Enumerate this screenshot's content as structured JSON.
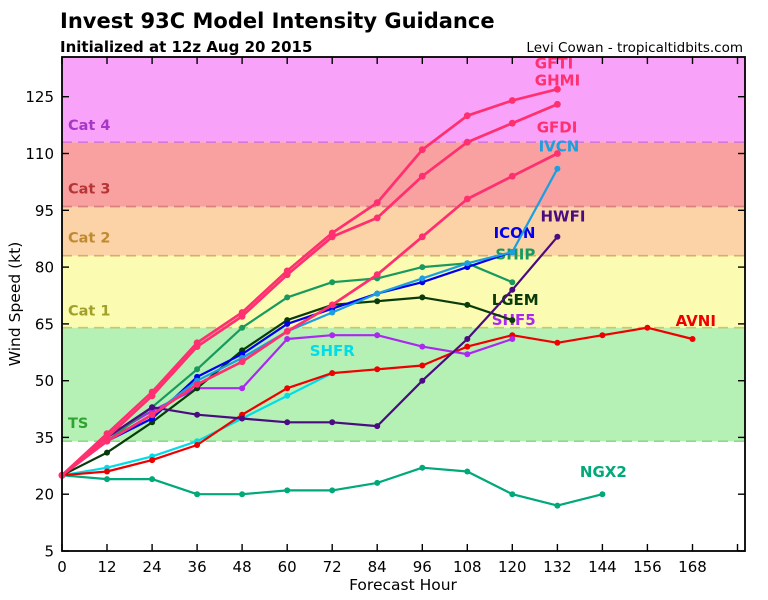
{
  "header": {
    "title": "Invest 93C Model Intensity Guidance",
    "subtitle": "Initialized at 12z Aug 20 2015",
    "credit": "Levi Cowan - tropicaltidbits.com"
  },
  "chart_data": {
    "type": "line",
    "title": "Invest 93C Model Intensity Guidance",
    "xlabel": "Forecast Hour",
    "ylabel": "Wind Speed (kt)",
    "xlim": [
      0,
      182
    ],
    "ylim": [
      5,
      135.5
    ],
    "xticks": [
      0,
      12,
      24,
      36,
      48,
      60,
      72,
      84,
      96,
      108,
      120,
      132,
      144,
      156,
      168,
      180
    ],
    "xtick_labels": [
      "0",
      "12",
      "24",
      "36",
      "48",
      "60",
      "72",
      "84",
      "96",
      "108",
      "120",
      "132",
      "144",
      "156",
      "168",
      ""
    ],
    "yticks": [
      5,
      20,
      35,
      50,
      65,
      80,
      95,
      110,
      125
    ],
    "grid": false,
    "legend_style": "inline-labels-at-line-ends",
    "bands": [
      {
        "name": "ts",
        "label": "TS",
        "from": 34,
        "to": 64,
        "fill": "#b5f1b5",
        "edge": "#8cd98c",
        "label_color": "#2fa32f",
        "label_at": [
          1.6,
          37.5
        ]
      },
      {
        "name": "cat1",
        "label": "Cat 1",
        "from": 64,
        "to": 83,
        "fill": "#fbfbb2",
        "edge": "#c8c86d",
        "label_color": "#a0a02b",
        "label_at": [
          1.6,
          67.2
        ]
      },
      {
        "name": "cat2",
        "label": "Cat 2",
        "from": 83,
        "to": 96,
        "fill": "#fbd3a6",
        "edge": "#dcab66",
        "label_color": "#c08a30",
        "label_at": [
          1.6,
          86.5
        ]
      },
      {
        "name": "cat3",
        "label": "Cat 3",
        "from": 96,
        "to": 113,
        "fill": "#f9a0a0",
        "edge": "#d98181",
        "label_color": "#b73535",
        "label_at": [
          1.6,
          99.5
        ]
      },
      {
        "name": "cat4",
        "label": "Cat 4",
        "from": 113,
        "to": 135.5,
        "fill": "#f9a2f9",
        "edge": "#d678d6",
        "label_color": "#a637c6",
        "label_at": [
          1.6,
          116.2
        ]
      }
    ],
    "series": [
      {
        "name": "NGX2",
        "color": "#00a87a",
        "x": [
          0,
          12,
          24,
          36,
          48,
          60,
          72,
          84,
          96,
          108,
          120,
          132,
          144
        ],
        "y": [
          25,
          24,
          24,
          20,
          20,
          21,
          21,
          23,
          27,
          26,
          20,
          17,
          20
        ],
        "label_at": [
          138,
          24.5
        ]
      },
      {
        "name": "SHFR",
        "color": "#00dde8",
        "x": [
          0,
          12,
          24,
          36,
          48,
          60,
          72
        ],
        "y": [
          25,
          27,
          30,
          34,
          40,
          46,
          52
        ],
        "label_at": [
          66,
          56.5
        ]
      },
      {
        "name": "AVNI",
        "color": "#ef0000",
        "x": [
          0,
          12,
          24,
          36,
          48,
          60,
          72,
          84,
          96,
          108,
          120,
          132,
          144,
          156,
          168
        ],
        "y": [
          25,
          26,
          29,
          33,
          41,
          48,
          52,
          53,
          54,
          59,
          62,
          60,
          62,
          64,
          61
        ],
        "label_at": [
          163.5,
          64.5
        ]
      },
      {
        "name": "SHF5",
        "color": "#aa28f0",
        "x": [
          0,
          12,
          24,
          36,
          48,
          60,
          72,
          84,
          96,
          108,
          120
        ],
        "y": [
          25,
          35,
          42,
          48,
          48,
          61,
          62,
          62,
          59,
          57,
          61
        ],
        "label_at": [
          114.5,
          64.7
        ]
      },
      {
        "name": "LGEM",
        "color": "#0a3b0a",
        "x": [
          0,
          12,
          24,
          36,
          48,
          60,
          72,
          84,
          96,
          108,
          120
        ],
        "y": [
          25,
          31,
          39,
          48,
          58,
          66,
          70,
          71,
          72,
          70,
          66
        ],
        "label_at": [
          114.5,
          70
        ]
      },
      {
        "name": "SHIP",
        "color": "#189a5e",
        "x": [
          0,
          12,
          24,
          36,
          48,
          60,
          72,
          84,
          96,
          108,
          120
        ],
        "y": [
          25,
          34,
          43,
          53,
          64,
          72,
          76,
          77,
          80,
          81,
          76
        ],
        "label_at": [
          115.5,
          82
        ]
      },
      {
        "name": "ICON",
        "color": "#0000ee",
        "x": [
          0,
          12,
          24,
          36,
          48,
          60,
          72,
          84,
          96,
          108,
          120
        ],
        "y": [
          25,
          34,
          40,
          51,
          57,
          65,
          69,
          73,
          76,
          80,
          84
        ],
        "label_at": [
          115,
          87.7
        ]
      },
      {
        "name": "IVCN",
        "color": "#1b9fe0",
        "x": [
          0,
          12,
          24,
          36,
          48,
          60,
          72,
          84,
          96,
          108,
          120,
          132
        ],
        "y": [
          25,
          34,
          41,
          50,
          56,
          63,
          68,
          73,
          77,
          81,
          84,
          106
        ],
        "label_at": [
          127,
          110.5
        ]
      },
      {
        "name": "HWFI",
        "color": "#4a0c7f",
        "x": [
          0,
          12,
          24,
          36,
          48,
          60,
          72,
          84,
          96,
          108,
          120,
          132
        ],
        "y": [
          25,
          35,
          43,
          41,
          40,
          39,
          39,
          38,
          50,
          61,
          74,
          88
        ],
        "label_at": [
          127.5,
          92
        ]
      },
      {
        "name": "GFDI",
        "color": "#ff2f70",
        "emphasis": true,
        "x": [
          0,
          12,
          24,
          36,
          48,
          60,
          72,
          84,
          96,
          108,
          120,
          132
        ],
        "y": [
          25,
          34,
          41,
          49,
          55,
          63,
          70,
          78,
          88,
          98,
          104,
          110
        ],
        "label_at": [
          126.5,
          115.5
        ]
      },
      {
        "name": "GHMI",
        "color": "#ff2f70",
        "emphasis": true,
        "x": [
          0,
          12,
          24,
          36,
          48,
          60,
          72,
          84,
          96,
          108,
          120,
          132
        ],
        "y": [
          25,
          35,
          46,
          59,
          67,
          78,
          88,
          93,
          104,
          113,
          118,
          123
        ],
        "label_at": [
          126,
          128
        ]
      },
      {
        "name": "GFTI",
        "color": "#ff2f70",
        "emphasis": true,
        "x": [
          0,
          12,
          24,
          36,
          48,
          60,
          72,
          84,
          96,
          108,
          120,
          132
        ],
        "y": [
          25,
          36,
          47,
          60,
          68,
          79,
          89,
          97,
          111,
          120,
          124,
          127
        ],
        "label_at": [
          126,
          132.5
        ]
      }
    ]
  }
}
